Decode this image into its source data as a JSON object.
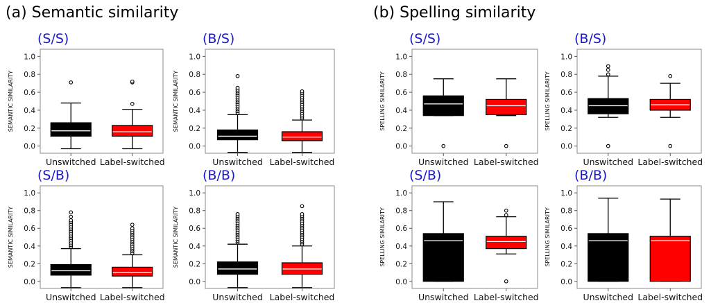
{
  "sections": [
    {
      "title": "(a) Semantic similarity"
    },
    {
      "title": "(b) Spelling similarity"
    }
  ],
  "colors": {
    "unswitched": "#000000",
    "label_switched": "#ff0000",
    "panel_label": "#1a1acc",
    "median_line": "#ffffff"
  },
  "chart_data": [
    {
      "type": "box",
      "section": "(a) Semantic similarity",
      "panel": "(S/S)",
      "ylabel": "SEMANTIC SIMILARITY",
      "categories": [
        "Unswitched",
        "Label-switched"
      ],
      "yticks": [
        0.0,
        0.2,
        0.4,
        0.6,
        0.8,
        1.0
      ],
      "ylim": [
        -0.08,
        1.08
      ],
      "boxes": [
        {
          "whisker_low": -0.03,
          "q1": 0.11,
          "median": 0.17,
          "q3": 0.26,
          "whisker_high": 0.48,
          "outliers": [
            0.71
          ]
        },
        {
          "whisker_low": -0.03,
          "q1": 0.11,
          "median": 0.16,
          "q3": 0.23,
          "whisker_high": 0.41,
          "outliers": [
            0.47,
            0.71,
            0.72
          ]
        }
      ]
    },
    {
      "type": "box",
      "section": "(a) Semantic similarity",
      "panel": "(B/S)",
      "ylabel": "SEMANTIC SIMILARITY",
      "categories": [
        "Unswitched",
        "Label-switched"
      ],
      "yticks": [
        0.0,
        0.2,
        0.4,
        0.6,
        0.8,
        1.0
      ],
      "ylim": [
        -0.08,
        1.08
      ],
      "boxes": [
        {
          "whisker_low": -0.07,
          "q1": 0.07,
          "median": 0.11,
          "q3": 0.18,
          "whisker_high": 0.35,
          "outliers": [
            0.37,
            0.39,
            0.41,
            0.43,
            0.45,
            0.47,
            0.49,
            0.51,
            0.53,
            0.55,
            0.57,
            0.59,
            0.61,
            0.63,
            0.65,
            0.78
          ]
        },
        {
          "whisker_low": -0.07,
          "q1": 0.06,
          "median": 0.1,
          "q3": 0.16,
          "whisker_high": 0.29,
          "outliers": [
            0.31,
            0.33,
            0.35,
            0.37,
            0.39,
            0.41,
            0.43,
            0.45,
            0.47,
            0.49,
            0.51,
            0.53,
            0.55,
            0.57,
            0.59,
            0.61
          ]
        }
      ]
    },
    {
      "type": "box",
      "section": "(a) Semantic similarity",
      "panel": "(S/B)",
      "ylabel": "SEMANTIC SIMILARITY",
      "categories": [
        "Unswitched",
        "Label-switched"
      ],
      "yticks": [
        0.0,
        0.2,
        0.4,
        0.6,
        0.8,
        1.0
      ],
      "ylim": [
        -0.08,
        1.08
      ],
      "boxes": [
        {
          "whisker_low": -0.07,
          "q1": 0.07,
          "median": 0.12,
          "q3": 0.19,
          "whisker_high": 0.37,
          "outliers": [
            0.39,
            0.41,
            0.43,
            0.45,
            0.47,
            0.49,
            0.51,
            0.53,
            0.55,
            0.57,
            0.59,
            0.61,
            0.63,
            0.65,
            0.67,
            0.69,
            0.73,
            0.78
          ]
        },
        {
          "whisker_low": -0.07,
          "q1": 0.06,
          "median": 0.1,
          "q3": 0.16,
          "whisker_high": 0.3,
          "outliers": [
            0.32,
            0.34,
            0.36,
            0.38,
            0.4,
            0.42,
            0.44,
            0.46,
            0.48,
            0.5,
            0.52,
            0.54,
            0.56,
            0.58,
            0.6,
            0.64
          ]
        }
      ]
    },
    {
      "type": "box",
      "section": "(a) Semantic similarity",
      "panel": "(B/B)",
      "ylabel": "SEMANTIC SIMILARITY",
      "categories": [
        "Unswitched",
        "Label-switched"
      ],
      "yticks": [
        0.0,
        0.2,
        0.4,
        0.6,
        0.8,
        1.0
      ],
      "ylim": [
        -0.08,
        1.08
      ],
      "boxes": [
        {
          "whisker_low": -0.07,
          "q1": 0.08,
          "median": 0.14,
          "q3": 0.22,
          "whisker_high": 0.42,
          "outliers": [
            0.44,
            0.46,
            0.48,
            0.5,
            0.52,
            0.54,
            0.56,
            0.58,
            0.6,
            0.62,
            0.64,
            0.66,
            0.68,
            0.7,
            0.72,
            0.74,
            0.76
          ]
        },
        {
          "whisker_low": -0.07,
          "q1": 0.08,
          "median": 0.14,
          "q3": 0.21,
          "whisker_high": 0.4,
          "outliers": [
            0.42,
            0.44,
            0.46,
            0.48,
            0.5,
            0.52,
            0.54,
            0.56,
            0.58,
            0.6,
            0.62,
            0.64,
            0.66,
            0.68,
            0.7,
            0.72,
            0.74,
            0.76,
            0.85
          ]
        }
      ]
    },
    {
      "type": "box",
      "section": "(b) Spelling similarity",
      "panel": "(S/S)",
      "ylabel": "SPELLING SIMILARITY",
      "categories": [
        "Unswitched",
        "Label-switched"
      ],
      "yticks": [
        0.0,
        0.2,
        0.4,
        0.6,
        0.8,
        1.0
      ],
      "ylim": [
        -0.08,
        1.08
      ],
      "boxes": [
        {
          "whisker_low": 0.34,
          "q1": 0.34,
          "median": 0.47,
          "q3": 0.56,
          "whisker_high": 0.75,
          "outliers": [
            0.0
          ]
        },
        {
          "whisker_low": 0.34,
          "q1": 0.35,
          "median": 0.45,
          "q3": 0.52,
          "whisker_high": 0.75,
          "outliers": [
            0.0
          ]
        }
      ]
    },
    {
      "type": "box",
      "section": "(b) Spelling similarity",
      "panel": "(B/S)",
      "ylabel": "SPELLING SIMILARITY",
      "categories": [
        "Unswitched",
        "Label-switched"
      ],
      "yticks": [
        0.0,
        0.2,
        0.4,
        0.6,
        0.8,
        1.0
      ],
      "ylim": [
        -0.08,
        1.08
      ],
      "boxes": [
        {
          "whisker_low": 0.32,
          "q1": 0.36,
          "median": 0.45,
          "q3": 0.53,
          "whisker_high": 0.78,
          "outliers": [
            0.0,
            0.8,
            0.85,
            0.89
          ]
        },
        {
          "whisker_low": 0.32,
          "q1": 0.4,
          "median": 0.46,
          "q3": 0.52,
          "whisker_high": 0.7,
          "outliers": [
            0.0,
            0.78
          ]
        }
      ]
    },
    {
      "type": "box",
      "section": "(b) Spelling similarity",
      "panel": "(S/B)",
      "ylabel": "SPELLING SIMILARITY",
      "categories": [
        "Unswitched",
        "Label-switched"
      ],
      "yticks": [
        0.0,
        0.2,
        0.4,
        0.6,
        0.8,
        1.0
      ],
      "ylim": [
        -0.08,
        1.08
      ],
      "boxes": [
        {
          "whisker_low": 0.0,
          "q1": 0.0,
          "median": 0.46,
          "q3": 0.54,
          "whisker_high": 0.9,
          "outliers": []
        },
        {
          "whisker_low": 0.31,
          "q1": 0.37,
          "median": 0.45,
          "q3": 0.51,
          "whisker_high": 0.73,
          "outliers": [
            0.0,
            0.75,
            0.8
          ]
        }
      ]
    },
    {
      "type": "box",
      "section": "(b) Spelling similarity",
      "panel": "(B/B)",
      "ylabel": "SPELLING SIMILARITY",
      "categories": [
        "Unswitched",
        "Label-switched"
      ],
      "yticks": [
        0.0,
        0.2,
        0.4,
        0.6,
        0.8,
        1.0
      ],
      "ylim": [
        -0.08,
        1.08
      ],
      "boxes": [
        {
          "whisker_low": 0.0,
          "q1": 0.0,
          "median": 0.46,
          "q3": 0.54,
          "whisker_high": 0.94,
          "outliers": []
        },
        {
          "whisker_low": 0.0,
          "q1": 0.0,
          "median": 0.46,
          "q3": 0.51,
          "whisker_high": 0.93,
          "outliers": []
        }
      ]
    }
  ]
}
